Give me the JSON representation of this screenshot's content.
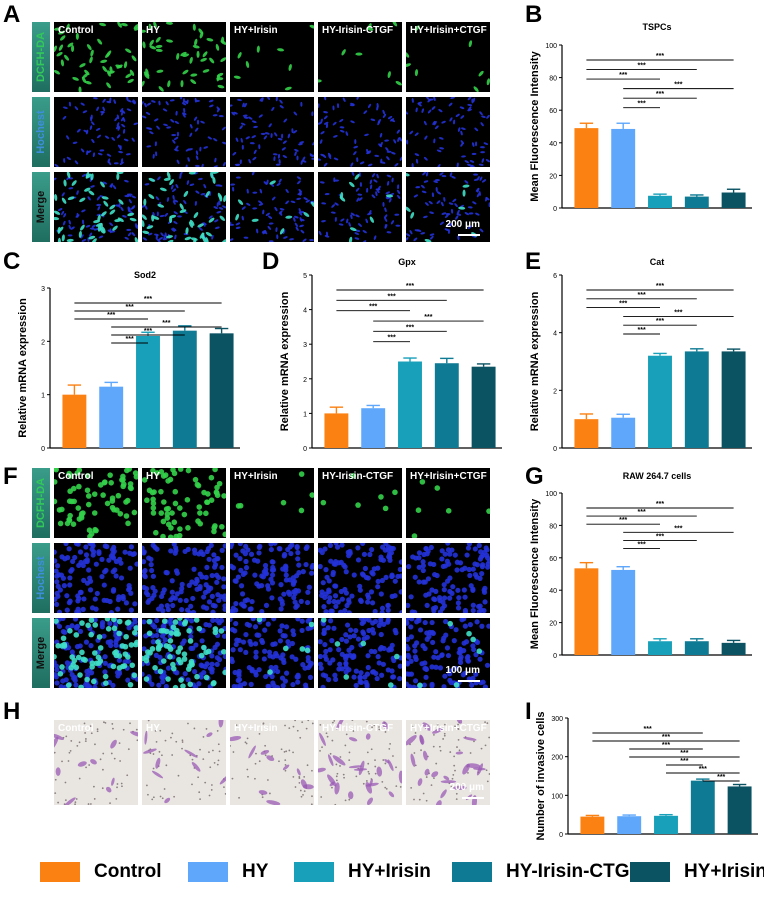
{
  "panel_labels": [
    "A",
    "B",
    "C",
    "D",
    "E",
    "F",
    "G",
    "H",
    "I"
  ],
  "groups": [
    "Control",
    "HY",
    "HY+Irisin",
    "HY-Irisin-CTGF",
    "HY+Irisin+CTGF"
  ],
  "colors": [
    "#fb8112",
    "#5ea7fb",
    "#18a0ba",
    "#0e7a93",
    "#0b5363"
  ],
  "panelA": {
    "rows": [
      "DCFH-DA",
      "Hochest",
      "Merge"
    ],
    "scale_bar": "200 μm"
  },
  "panelF": {
    "rows": [
      "DCFH-DA",
      "Hochest",
      "Merge"
    ],
    "scale_bar": "100 μm"
  },
  "panelH": {
    "scale_bar": "200 μm"
  },
  "sig": "***",
  "chart_data": [
    {
      "id": "B",
      "type": "bar",
      "title": "TSPCs",
      "ylabel": "Mean Fluorescence Intensity",
      "categories": [
        "Control",
        "HY",
        "HY+Irisin",
        "HY-Irisin-CTGF",
        "HY+Irisin+CTGF"
      ],
      "values": [
        49,
        48.5,
        7.5,
        7,
        9.5
      ],
      "errors": [
        3,
        3.5,
        1,
        1,
        2
      ],
      "ylim": [
        0,
        100
      ],
      "yticks": [
        0,
        20,
        40,
        60,
        80,
        100
      ],
      "brackets": [
        [
          0,
          4
        ],
        [
          0,
          3
        ],
        [
          0,
          2
        ],
        [
          1,
          4
        ],
        [
          1,
          3
        ],
        [
          1,
          2
        ]
      ]
    },
    {
      "id": "C",
      "type": "bar",
      "title": "Sod2",
      "ylabel": "Relative mRNA expression",
      "categories": [
        "Control",
        "HY",
        "HY+Irisin",
        "HY-Irisin-CTGF",
        "HY+Irisin+CTGF"
      ],
      "values": [
        1.0,
        1.15,
        2.1,
        2.2,
        2.15
      ],
      "errors": [
        0.18,
        0.08,
        0.07,
        0.09,
        0.09
      ],
      "ylim": [
        0,
        3
      ],
      "yticks": [
        0,
        1,
        2,
        3
      ],
      "brackets": [
        [
          0,
          4
        ],
        [
          0,
          3
        ],
        [
          0,
          2
        ],
        [
          1,
          4
        ],
        [
          1,
          3
        ],
        [
          1,
          2
        ]
      ]
    },
    {
      "id": "D",
      "type": "bar",
      "title": "Gpx",
      "ylabel": "Relative mRNA expression",
      "categories": [
        "Control",
        "HY",
        "HY+Irisin",
        "HY-Irisin-CTGF",
        "HY+Irisin+CTGF"
      ],
      "values": [
        1.0,
        1.15,
        2.5,
        2.45,
        2.35
      ],
      "errors": [
        0.18,
        0.08,
        0.1,
        0.14,
        0.08
      ],
      "ylim": [
        0,
        5
      ],
      "yticks": [
        0,
        1,
        2,
        3,
        4,
        5
      ],
      "brackets": [
        [
          0,
          4
        ],
        [
          0,
          3
        ],
        [
          0,
          2
        ],
        [
          1,
          4
        ],
        [
          1,
          3
        ],
        [
          1,
          2
        ]
      ]
    },
    {
      "id": "E",
      "type": "bar",
      "title": "Cat",
      "ylabel": "Relative mRNA expression",
      "categories": [
        "Control",
        "HY",
        "HY+Irisin",
        "HY-Irisin-CTGF",
        "HY+Irisin+CTGF"
      ],
      "values": [
        1.0,
        1.05,
        3.2,
        3.35,
        3.35
      ],
      "errors": [
        0.18,
        0.12,
        0.08,
        0.09,
        0.08
      ],
      "ylim": [
        0,
        6
      ],
      "yticks": [
        0,
        2,
        4,
        6
      ],
      "brackets": [
        [
          0,
          4
        ],
        [
          0,
          3
        ],
        [
          0,
          2
        ],
        [
          1,
          4
        ],
        [
          1,
          3
        ],
        [
          1,
          2
        ]
      ]
    },
    {
      "id": "G",
      "type": "bar",
      "title": "RAW 264.7 cells",
      "ylabel": "Mean Fluorescence Intensity",
      "categories": [
        "Control",
        "HY",
        "HY+Irisin",
        "HY-Irisin-CTGF",
        "HY+Irisin+CTGF"
      ],
      "values": [
        53.5,
        52.5,
        8.5,
        8.5,
        7.5
      ],
      "errors": [
        3.5,
        2,
        1.5,
        1.5,
        1.5
      ],
      "ylim": [
        0,
        100
      ],
      "yticks": [
        0,
        20,
        40,
        60,
        80,
        100
      ],
      "brackets": [
        [
          0,
          4
        ],
        [
          0,
          3
        ],
        [
          0,
          2
        ],
        [
          1,
          4
        ],
        [
          1,
          3
        ],
        [
          1,
          2
        ]
      ]
    },
    {
      "id": "I",
      "type": "bar",
      "title": "",
      "ylabel": "Number of invasive cells",
      "categories": [
        "Control",
        "HY",
        "HY+Irisin",
        "HY-Irisin-CTGF",
        "HY+Irisin+CTGF"
      ],
      "values": [
        45,
        46,
        47,
        138,
        123
      ],
      "errors": [
        3,
        3,
        3,
        4,
        5
      ],
      "ylim": [
        0,
        300
      ],
      "yticks": [
        0,
        100,
        200,
        300
      ],
      "brackets": [
        [
          0,
          3
        ],
        [
          0,
          4
        ],
        [
          1,
          3
        ],
        [
          1,
          4
        ],
        [
          2,
          3
        ],
        [
          2,
          4
        ],
        [
          3,
          4
        ]
      ]
    }
  ]
}
